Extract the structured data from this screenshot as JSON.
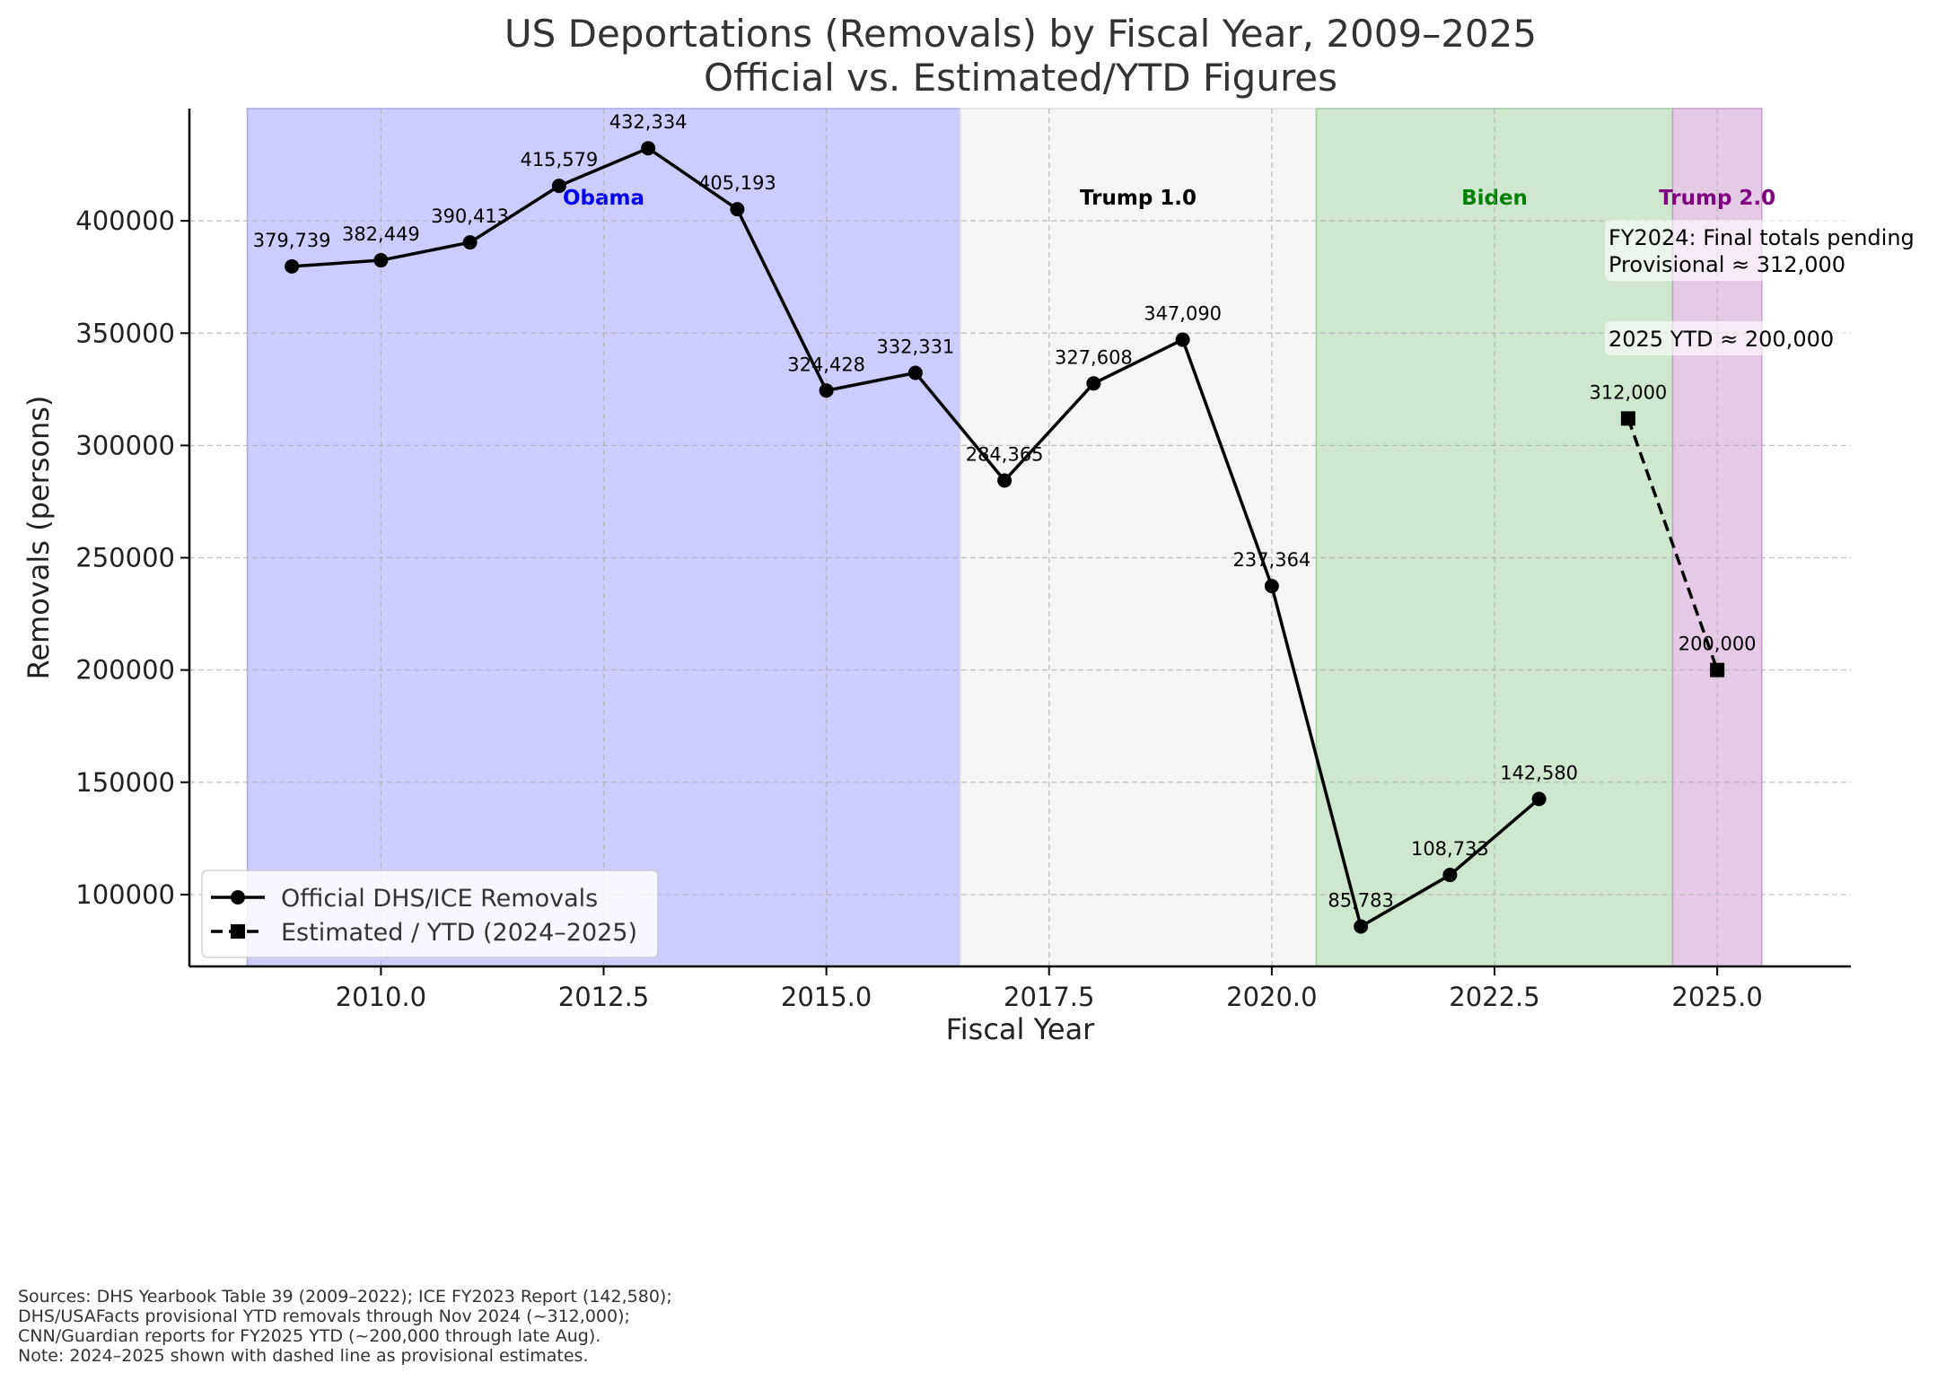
{
  "chart_data": {
    "type": "line",
    "title": [
      "US Deportations (Removals) by Fiscal Year, 2009–2025",
      "Official vs. Estimated/YTD Figures"
    ],
    "xlabel": "Fiscal Year",
    "ylabel": "Removals (persons)",
    "xlim": [
      2007.85,
      2026.5
    ],
    "ylim": [
      68000,
      450000
    ],
    "x_ticks": [
      2010,
      2012.5,
      2015,
      2017.5,
      2020,
      2022.5,
      2025
    ],
    "x_tick_labels": [
      "2010.0",
      "2012.5",
      "2015.0",
      "2017.5",
      "2020.0",
      "2022.5",
      "2025.0"
    ],
    "y_ticks": [
      100000,
      150000,
      200000,
      250000,
      300000,
      350000,
      400000
    ],
    "y_tick_labels": [
      "100000",
      "150000",
      "200000",
      "250000",
      "300000",
      "350000",
      "400000"
    ],
    "grid": true,
    "legend_position": "lower-left",
    "series": [
      {
        "name": "Official DHS/ICE Removals",
        "style": "solid",
        "marker": "circle",
        "color": "#000000",
        "x": [
          2009,
          2010,
          2011,
          2012,
          2013,
          2014,
          2015,
          2016,
          2017,
          2018,
          2019,
          2020,
          2021,
          2022,
          2023
        ],
        "values": [
          379739,
          382449,
          390413,
          415579,
          432334,
          405193,
          324428,
          332331,
          284365,
          327608,
          347090,
          237364,
          85783,
          108733,
          142580
        ],
        "labels": [
          "379,739",
          "382,449",
          "390,413",
          "415,579",
          "432,334",
          "405,193",
          "324,428",
          "332,331",
          "284,365",
          "327,608",
          "347,090",
          "237,364",
          "85,783",
          "108,733",
          "142,580"
        ]
      },
      {
        "name": "Estimated / YTD (2024–2025)",
        "style": "dashed",
        "marker": "square",
        "color": "#000000",
        "x": [
          2024,
          2025
        ],
        "values": [
          312000,
          200000
        ],
        "labels": [
          "312,000",
          "200,000"
        ]
      }
    ],
    "eras": [
      {
        "name": "Obama",
        "x_start": 2008.5,
        "x_end": 2016.5,
        "fill": "#ccccff",
        "edge": "#a8a8ee",
        "label_color": "#0000ee"
      },
      {
        "name": "Trump 1.0",
        "x_start": 2016.5,
        "x_end": 2020.5,
        "fill": "#f5f5f5",
        "edge": "#dddddd",
        "label_color": "#000000"
      },
      {
        "name": "Biden",
        "x_start": 2020.5,
        "x_end": 2024.5,
        "fill": "#cfe6cf",
        "edge": "#9fcc9f",
        "label_color": "#008000"
      },
      {
        "name": "Trump 2.0",
        "x_start": 2024.5,
        "x_end": 2025.5,
        "fill": "#e5cae5",
        "edge": "#c89ac8",
        "label_color": "#800080"
      }
    ],
    "annotations": [
      {
        "lines": [
          "FY2024: Final totals pending",
          "Provisional ≈ 312,000"
        ]
      },
      {
        "lines": [
          "2025 YTD ≈ 200,000"
        ]
      }
    ]
  },
  "sources": [
    "Sources: DHS Yearbook Table 39 (2009–2022); ICE FY2023 Report (142,580);",
    "DHS/USAFacts provisional YTD removals through Nov 2024 (~312,000);",
    "CNN/Guardian reports for FY2025 YTD (~200,000 through late Aug).",
    "Note: 2024–2025 shown with dashed line as provisional estimates."
  ]
}
